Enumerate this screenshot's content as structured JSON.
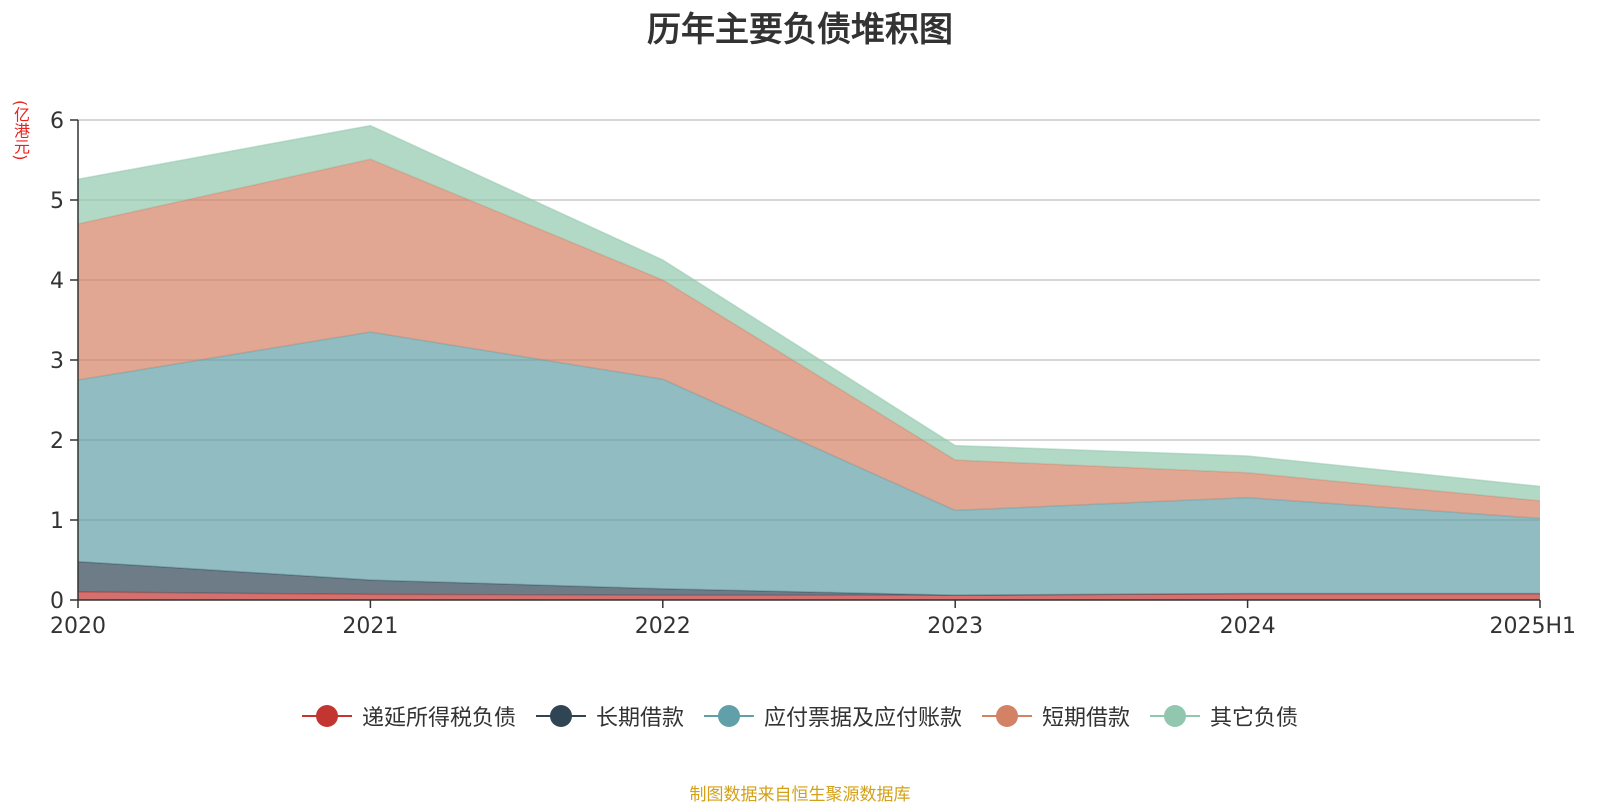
{
  "title": "历年主要负债堆积图",
  "unit": "(亿港元)",
  "source_note": "制图数据来自恒生聚源数据库",
  "chart_data": {
    "type": "area",
    "stacked": true,
    "title": "历年主要负债堆积图",
    "ylabel": "(亿港元)",
    "xlabel": "",
    "ylim": [
      0,
      6
    ],
    "yticks": [
      0,
      1,
      2,
      3,
      4,
      5,
      6
    ],
    "grid": true,
    "legend_position": "bottom",
    "categories": [
      "2020",
      "2021",
      "2022",
      "2023",
      "2024",
      "2025H1"
    ],
    "series": [
      {
        "name": "递延所得税负债",
        "color": "#c23531",
        "values": [
          0.1,
          0.07,
          0.06,
          0.06,
          0.08,
          0.08
        ]
      },
      {
        "name": "长期借款",
        "color": "#2f4554",
        "values": [
          0.38,
          0.18,
          0.08,
          0.0,
          0.0,
          0.0
        ]
      },
      {
        "name": "应付票据及应付账款",
        "color": "#61a0a8",
        "values": [
          2.27,
          3.1,
          2.62,
          1.06,
          1.2,
          0.94
        ]
      },
      {
        "name": "短期借款",
        "color": "#d48265",
        "values": [
          1.95,
          2.16,
          1.24,
          0.63,
          0.31,
          0.22
        ]
      },
      {
        "name": "其它负债",
        "color": "#91c7ae",
        "values": [
          0.56,
          0.42,
          0.25,
          0.18,
          0.21,
          0.18
        ]
      }
    ]
  }
}
